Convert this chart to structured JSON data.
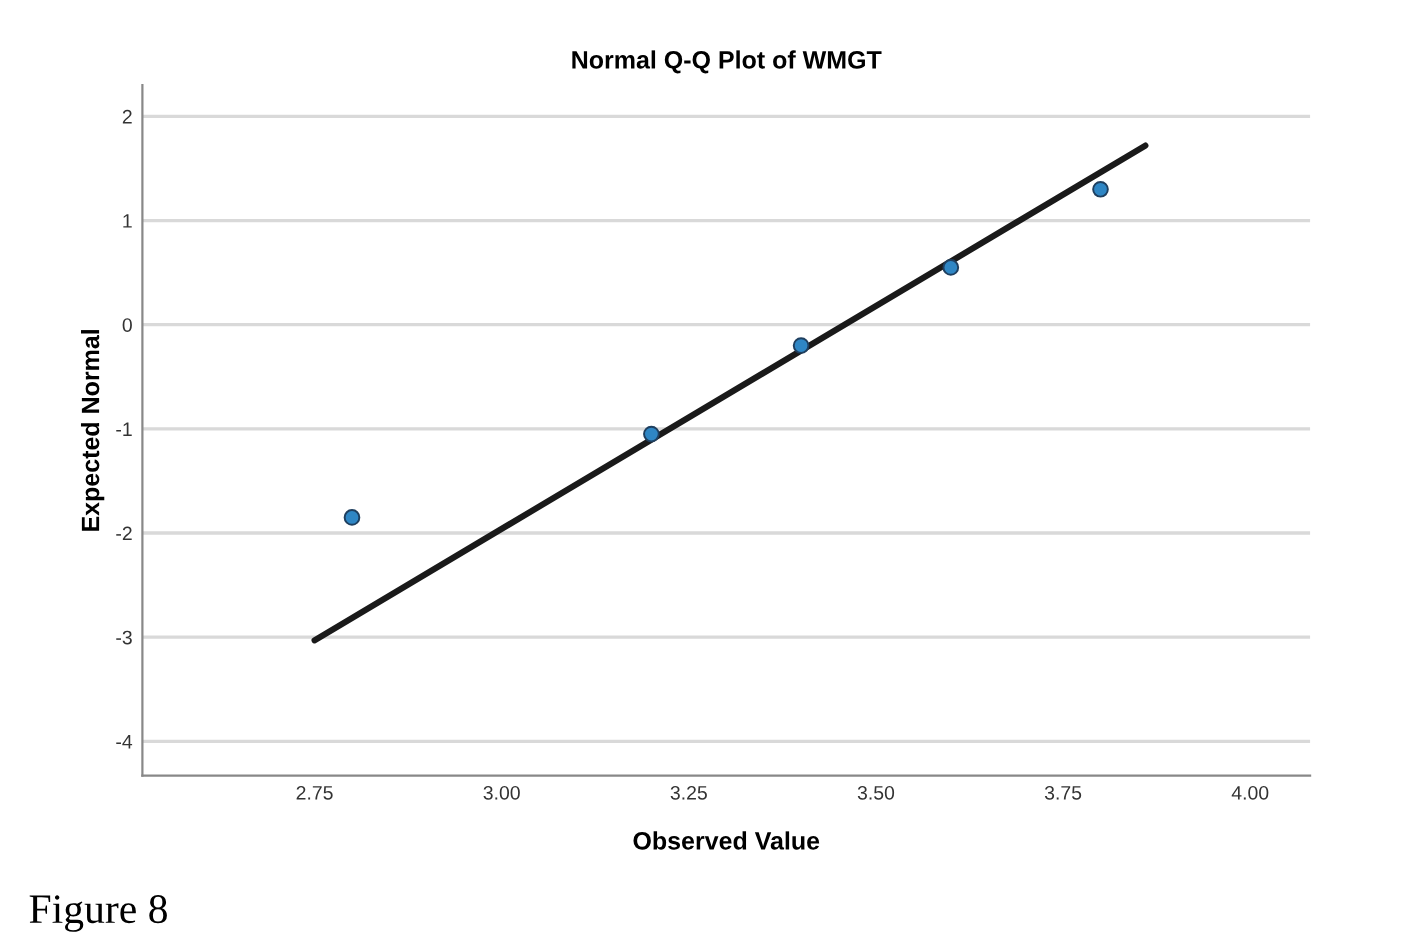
{
  "chart_data": {
    "type": "scatter",
    "title": "Normal Q-Q Plot of WMGT",
    "xlabel": "Observed Value",
    "ylabel": "Expected Normal",
    "series": [
      {
        "marker": "circle",
        "color": "#2f86c4",
        "x": [
          2.8,
          3.2,
          3.4,
          3.6,
          3.8
        ],
        "values": [
          -1.85,
          -1.05,
          -0.2,
          0.55,
          1.3
        ]
      },
      {
        "type": "line",
        "color": "#1a1a1a",
        "x": [
          2.75,
          3.86
        ],
        "values": [
          -3.03,
          1.72
        ]
      }
    ],
    "xlim": [
      2.52,
      4.08
    ],
    "xticks": [
      {
        "value": 2.75,
        "label": "2.75"
      },
      {
        "value": 3.0,
        "label": "3.00"
      },
      {
        "value": 3.25,
        "label": "3.25"
      },
      {
        "value": 3.5,
        "label": "3.50"
      },
      {
        "value": 3.75,
        "label": "3.75"
      },
      {
        "value": 4.0,
        "label": "4.00"
      }
    ],
    "ylim": [
      -4.33,
      2.3
    ],
    "yticks": [
      -4,
      -3,
      -2,
      -1,
      0,
      1,
      2
    ],
    "grid": "y",
    "annotations": [
      "Figure 8"
    ]
  }
}
